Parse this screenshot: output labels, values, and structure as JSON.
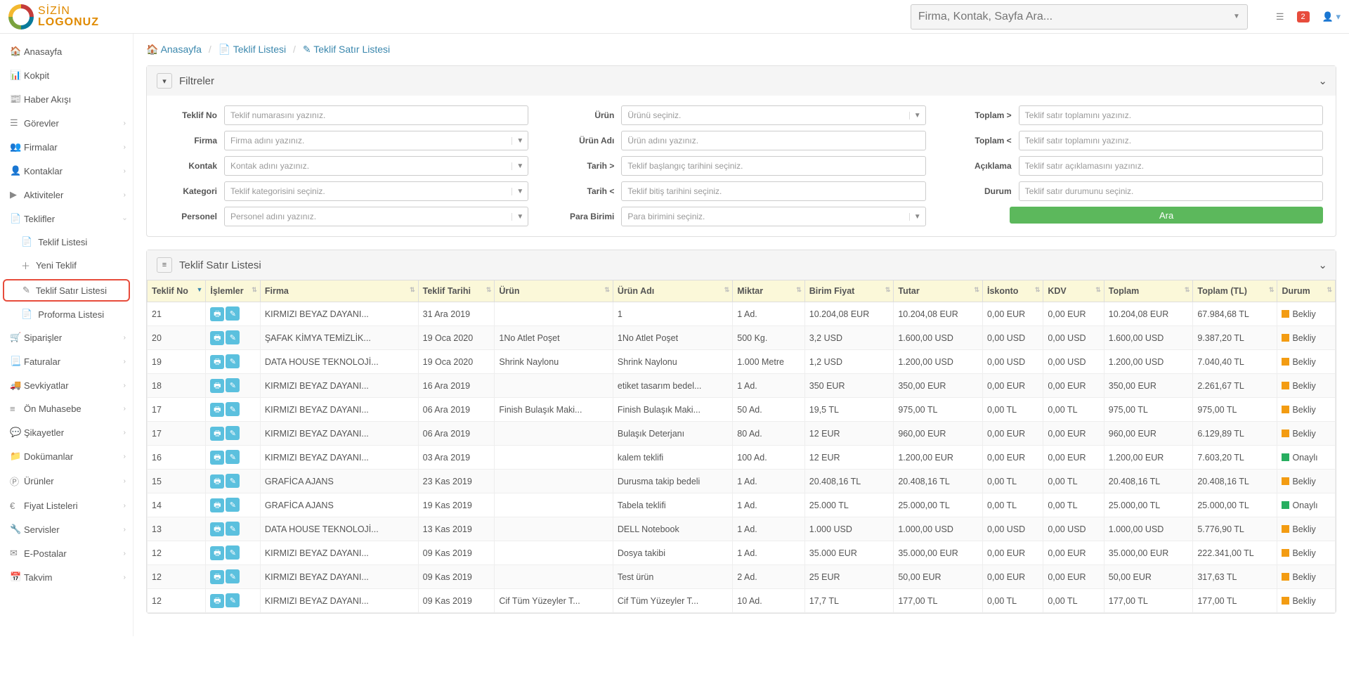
{
  "logo": {
    "line1": "SİZİN",
    "line2": "LOGONUZ"
  },
  "top": {
    "search_placeholder": "Firma, Kontak, Sayfa Ara...",
    "notif_count": "2"
  },
  "sidebar": {
    "items": [
      {
        "icon": "🏠",
        "label": "Anasayfa",
        "chev": false
      },
      {
        "icon": "📊",
        "label": "Kokpit",
        "chev": false
      },
      {
        "icon": "📰",
        "label": "Haber Akışı",
        "chev": false
      },
      {
        "icon": "☰",
        "label": "Görevler",
        "chev": true
      },
      {
        "icon": "👥",
        "label": "Firmalar",
        "chev": true
      },
      {
        "icon": "👤",
        "label": "Kontaklar",
        "chev": true
      },
      {
        "icon": "▶",
        "label": "Aktiviteler",
        "chev": true
      },
      {
        "icon": "📄",
        "label": "Teklifler",
        "chev": true,
        "expanded": true,
        "subs": [
          {
            "icon": "📄",
            "label": "Teklif Listesi"
          },
          {
            "icon": "＋",
            "label": "Yeni Teklif"
          },
          {
            "icon": "✎",
            "label": "Teklif Satır Listesi",
            "active": true
          },
          {
            "icon": "📄",
            "label": "Proforma Listesi"
          }
        ]
      },
      {
        "icon": "🛒",
        "label": "Siparişler",
        "chev": true
      },
      {
        "icon": "📃",
        "label": "Faturalar",
        "chev": true
      },
      {
        "icon": "🚚",
        "label": "Sevkiyatlar",
        "chev": true
      },
      {
        "icon": "≡",
        "label": "Ön Muhasebe",
        "chev": true
      },
      {
        "icon": "💬",
        "label": "Şikayetler",
        "chev": true
      },
      {
        "icon": "📁",
        "label": "Dokümanlar",
        "chev": true
      },
      {
        "icon": "Ⓟ",
        "label": "Ürünler",
        "chev": true
      },
      {
        "icon": "€",
        "label": "Fiyat Listeleri",
        "chev": true
      },
      {
        "icon": "🔧",
        "label": "Servisler",
        "chev": true
      },
      {
        "icon": "✉",
        "label": "E-Postalar",
        "chev": true
      },
      {
        "icon": "📅",
        "label": "Takvim",
        "chev": true
      }
    ]
  },
  "breadcrumb": {
    "home": "Anasayfa",
    "teklif": "Teklif Listesi",
    "satir": "Teklif Satır Listesi"
  },
  "filters": {
    "title": "Filtreler",
    "col1": [
      {
        "label": "Teklif No",
        "ph": "Teklif numarasını yazınız.",
        "dd": false
      },
      {
        "label": "Firma",
        "ph": "Firma adını yazınız.",
        "dd": true
      },
      {
        "label": "Kontak",
        "ph": "Kontak adını yazınız.",
        "dd": true
      },
      {
        "label": "Kategori",
        "ph": "Teklif kategorisini seçiniz.",
        "dd": true
      },
      {
        "label": "Personel",
        "ph": "Personel adını yazınız.",
        "dd": true
      }
    ],
    "col2": [
      {
        "label": "Ürün",
        "ph": "Ürünü seçiniz.",
        "dd": true
      },
      {
        "label": "Ürün Adı",
        "ph": "Ürün adını yazınız.",
        "dd": false
      },
      {
        "label": "Tarih >",
        "ph": "Teklif başlangıç tarihini seçiniz.",
        "dd": false
      },
      {
        "label": "Tarih <",
        "ph": "Teklif bitiş tarihini seçiniz.",
        "dd": false
      },
      {
        "label": "Para Birimi",
        "ph": "Para birimini seçiniz.",
        "dd": true
      }
    ],
    "col3": [
      {
        "label": "Toplam >",
        "ph": "Teklif satır toplamını yazınız.",
        "dd": false
      },
      {
        "label": "Toplam <",
        "ph": "Teklif satır toplamını yazınız.",
        "dd": false
      },
      {
        "label": "Açıklama",
        "ph": "Teklif satır açıklamasını yazınız.",
        "dd": false
      },
      {
        "label": "Durum",
        "ph": "Teklif satır durumunu seçiniz.",
        "dd": false
      }
    ],
    "search_btn": "Ara"
  },
  "listpanel": {
    "title": "Teklif Satır Listesi"
  },
  "table": {
    "columns": [
      "Teklif No",
      "İşlemler",
      "Firma",
      "Teklif Tarihi",
      "Ürün",
      "Ürün Adı",
      "Miktar",
      "Birim Fiyat",
      "Tutar",
      "İskonto",
      "KDV",
      "Toplam",
      "Toplam (TL)",
      "Durum"
    ],
    "status_colors": {
      "Bekliy": "#f39c12",
      "Onaylı": "#27ae60"
    },
    "rows": [
      {
        "no": "21",
        "firma": "KIRMIZI BEYAZ DAYANI...",
        "tarih": "31 Ara 2019",
        "urun": "",
        "urunadi": "1",
        "miktar": "1 Ad.",
        "birim": "10.204,08 EUR",
        "tutar": "10.204,08 EUR",
        "iskonto": "0,00 EUR",
        "kdv": "0,00 EUR",
        "toplam": "10.204,08 EUR",
        "toplamtl": "67.984,68 TL",
        "durum": "Bekliy"
      },
      {
        "no": "20",
        "firma": "ŞAFAK KİMYA TEMİZLİK...",
        "tarih": "19 Oca 2020",
        "urun": "1No Atlet Poşet",
        "urunadi": "1No Atlet Poşet",
        "miktar": "500 Kg.",
        "birim": "3,2 USD",
        "tutar": "1.600,00 USD",
        "iskonto": "0,00 USD",
        "kdv": "0,00 USD",
        "toplam": "1.600,00 USD",
        "toplamtl": "9.387,20 TL",
        "durum": "Bekliy"
      },
      {
        "no": "19",
        "firma": "DATA HOUSE TEKNOLOJİ...",
        "tarih": "19 Oca 2020",
        "urun": "Shrink Naylonu",
        "urunadi": "Shrink Naylonu",
        "miktar": "1.000 Metre",
        "birim": "1,2 USD",
        "tutar": "1.200,00 USD",
        "iskonto": "0,00 USD",
        "kdv": "0,00 USD",
        "toplam": "1.200,00 USD",
        "toplamtl": "7.040,40 TL",
        "durum": "Bekliy"
      },
      {
        "no": "18",
        "firma": "KIRMIZI BEYAZ DAYANI...",
        "tarih": "16 Ara 2019",
        "urun": "",
        "urunadi": "etiket tasarım bedel...",
        "miktar": "1 Ad.",
        "birim": "350 EUR",
        "tutar": "350,00 EUR",
        "iskonto": "0,00 EUR",
        "kdv": "0,00 EUR",
        "toplam": "350,00 EUR",
        "toplamtl": "2.261,67 TL",
        "durum": "Bekliy"
      },
      {
        "no": "17",
        "firma": "KIRMIZI BEYAZ DAYANI...",
        "tarih": "06 Ara 2019",
        "urun": "Finish Bulaşık Maki...",
        "urunadi": "Finish Bulaşık Maki...",
        "miktar": "50 Ad.",
        "birim": "19,5 TL",
        "tutar": "975,00 TL",
        "iskonto": "0,00 TL",
        "kdv": "0,00 TL",
        "toplam": "975,00 TL",
        "toplamtl": "975,00 TL",
        "durum": "Bekliy"
      },
      {
        "no": "17",
        "firma": "KIRMIZI BEYAZ DAYANI...",
        "tarih": "06 Ara 2019",
        "urun": "",
        "urunadi": "Bulaşık Deterjanı",
        "miktar": "80 Ad.",
        "birim": "12 EUR",
        "tutar": "960,00 EUR",
        "iskonto": "0,00 EUR",
        "kdv": "0,00 EUR",
        "toplam": "960,00 EUR",
        "toplamtl": "6.129,89 TL",
        "durum": "Bekliy"
      },
      {
        "no": "16",
        "firma": "KIRMIZI BEYAZ DAYANI...",
        "tarih": "03 Ara 2019",
        "urun": "",
        "urunadi": "kalem teklifi",
        "miktar": "100 Ad.",
        "birim": "12 EUR",
        "tutar": "1.200,00 EUR",
        "iskonto": "0,00 EUR",
        "kdv": "0,00 EUR",
        "toplam": "1.200,00 EUR",
        "toplamtl": "7.603,20 TL",
        "durum": "Onaylı"
      },
      {
        "no": "15",
        "firma": "GRAFİCA AJANS",
        "tarih": "23 Kas 2019",
        "urun": "",
        "urunadi": "Durusma takip bedeli",
        "miktar": "1 Ad.",
        "birim": "20.408,16 TL",
        "tutar": "20.408,16 TL",
        "iskonto": "0,00 TL",
        "kdv": "0,00 TL",
        "toplam": "20.408,16 TL",
        "toplamtl": "20.408,16 TL",
        "durum": "Bekliy"
      },
      {
        "no": "14",
        "firma": "GRAFİCA AJANS",
        "tarih": "19 Kas 2019",
        "urun": "",
        "urunadi": "Tabela teklifi",
        "miktar": "1 Ad.",
        "birim": "25.000 TL",
        "tutar": "25.000,00 TL",
        "iskonto": "0,00 TL",
        "kdv": "0,00 TL",
        "toplam": "25.000,00 TL",
        "toplamtl": "25.000,00 TL",
        "durum": "Onaylı"
      },
      {
        "no": "13",
        "firma": "DATA HOUSE TEKNOLOJİ...",
        "tarih": "13 Kas 2019",
        "urun": "",
        "urunadi": "DELL Notebook",
        "miktar": "1 Ad.",
        "birim": "1.000 USD",
        "tutar": "1.000,00 USD",
        "iskonto": "0,00 USD",
        "kdv": "0,00 USD",
        "toplam": "1.000,00 USD",
        "toplamtl": "5.776,90 TL",
        "durum": "Bekliy"
      },
      {
        "no": "12",
        "firma": "KIRMIZI BEYAZ DAYANI...",
        "tarih": "09 Kas 2019",
        "urun": "",
        "urunadi": "Dosya takibi",
        "miktar": "1 Ad.",
        "birim": "35.000 EUR",
        "tutar": "35.000,00 EUR",
        "iskonto": "0,00 EUR",
        "kdv": "0,00 EUR",
        "toplam": "35.000,00 EUR",
        "toplamtl": "222.341,00 TL",
        "durum": "Bekliy"
      },
      {
        "no": "12",
        "firma": "KIRMIZI BEYAZ DAYANI...",
        "tarih": "09 Kas 2019",
        "urun": "",
        "urunadi": "Test ürün",
        "miktar": "2 Ad.",
        "birim": "25 EUR",
        "tutar": "50,00 EUR",
        "iskonto": "0,00 EUR",
        "kdv": "0,00 EUR",
        "toplam": "50,00 EUR",
        "toplamtl": "317,63 TL",
        "durum": "Bekliy"
      },
      {
        "no": "12",
        "firma": "KIRMIZI BEYAZ DAYANI...",
        "tarih": "09 Kas 2019",
        "urun": "Cif Tüm Yüzeyler T...",
        "urunadi": "Cif Tüm Yüzeyler T...",
        "miktar": "10 Ad.",
        "birim": "17,7 TL",
        "tutar": "177,00 TL",
        "iskonto": "0,00 TL",
        "kdv": "0,00 TL",
        "toplam": "177,00 TL",
        "toplamtl": "177,00 TL",
        "durum": "Bekliy"
      }
    ]
  }
}
